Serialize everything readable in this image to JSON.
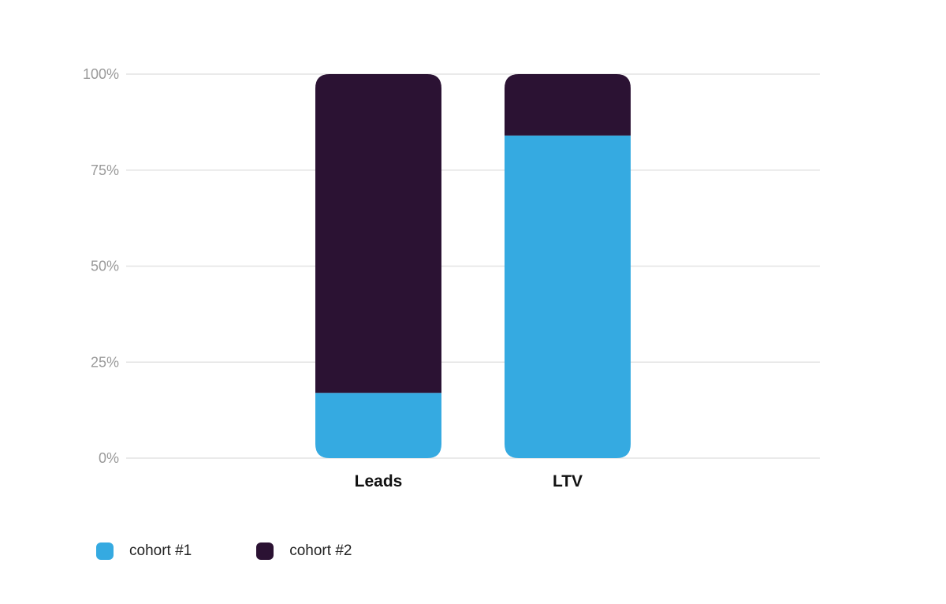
{
  "chart_data": {
    "type": "bar",
    "stacked": true,
    "normalized": true,
    "categories": [
      "Leads",
      "LTV"
    ],
    "series": [
      {
        "name": "cohort #1",
        "color": "#35aae1",
        "values": [
          17,
          84
        ]
      },
      {
        "name": "cohort #2",
        "color": "#2b1233",
        "values": [
          83,
          16
        ]
      }
    ],
    "y_ticks": [
      "0%",
      "25%",
      "50%",
      "75%",
      "100%"
    ],
    "ylim": [
      0,
      100
    ],
    "grid": true,
    "legend_position": "bottom-left"
  }
}
